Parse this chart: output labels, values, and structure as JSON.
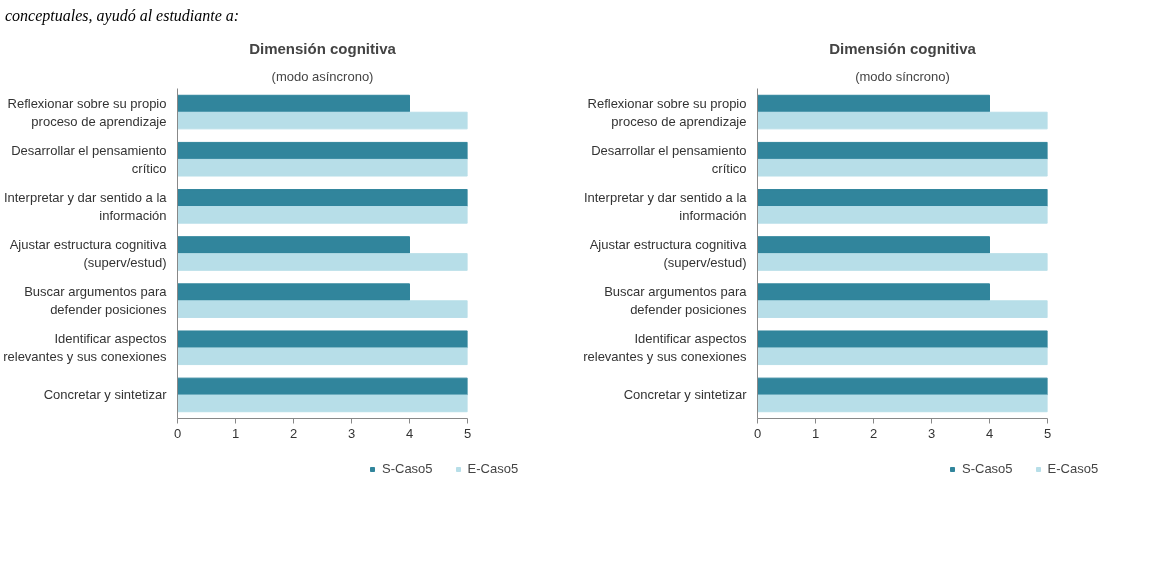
{
  "chart_data": [
    {
      "type": "bar",
      "orientation": "horizontal",
      "title": "Dimensión cognitiva",
      "subtitle": "(modo asíncrono)",
      "annotations": [
        "conceptuales, ayudó al estudiante a:"
      ],
      "categories": [
        "Reflexionar sobre su propio proceso de aprendizaje",
        "Desarrollar el pensamiento crítico",
        "Interpretar y dar sentido a la información",
        "Ajustar estructura cognitiva (superv/estud)",
        "Buscar argumentos para defender posiciones",
        "Identificar aspectos relevantes y sus conexiones",
        "Concretar y sintetizar"
      ],
      "series": [
        {
          "name": "S-Caso5",
          "color": "#31859c",
          "values": [
            4,
            5,
            5,
            4,
            4,
            5,
            5
          ]
        },
        {
          "name": "E-Caso5",
          "color": "#b7dee8",
          "values": [
            5,
            5,
            5,
            5,
            5,
            5,
            5
          ]
        }
      ],
      "xlim": [
        0,
        5
      ],
      "xticks": [
        0,
        1,
        2,
        3,
        4,
        5
      ],
      "grid": false,
      "legend": "bottom"
    },
    {
      "type": "bar",
      "orientation": "horizontal",
      "title": "Dimensión cognitiva",
      "subtitle": "(modo síncrono)",
      "categories": [
        "Reflexionar sobre su propio proceso de aprendizaje",
        "Desarrollar el pensamiento crítico",
        "Interpretar y dar sentido a la información",
        "Ajustar estructura cognitiva (superv/estud)",
        "Buscar argumentos para defender posiciones",
        "Identificar aspectos relevantes y sus conexiones",
        "Concretar y sintetizar"
      ],
      "series": [
        {
          "name": "S-Caso5",
          "color": "#31859c",
          "values": [
            4,
            5,
            5,
            4,
            4,
            5,
            5
          ]
        },
        {
          "name": "E-Caso5",
          "color": "#b7dee8",
          "values": [
            5,
            5,
            5,
            5,
            5,
            5,
            5
          ]
        }
      ],
      "xlim": [
        0,
        5
      ],
      "xticks": [
        0,
        1,
        2,
        3,
        4,
        5
      ],
      "grid": false,
      "legend": "bottom"
    }
  ]
}
